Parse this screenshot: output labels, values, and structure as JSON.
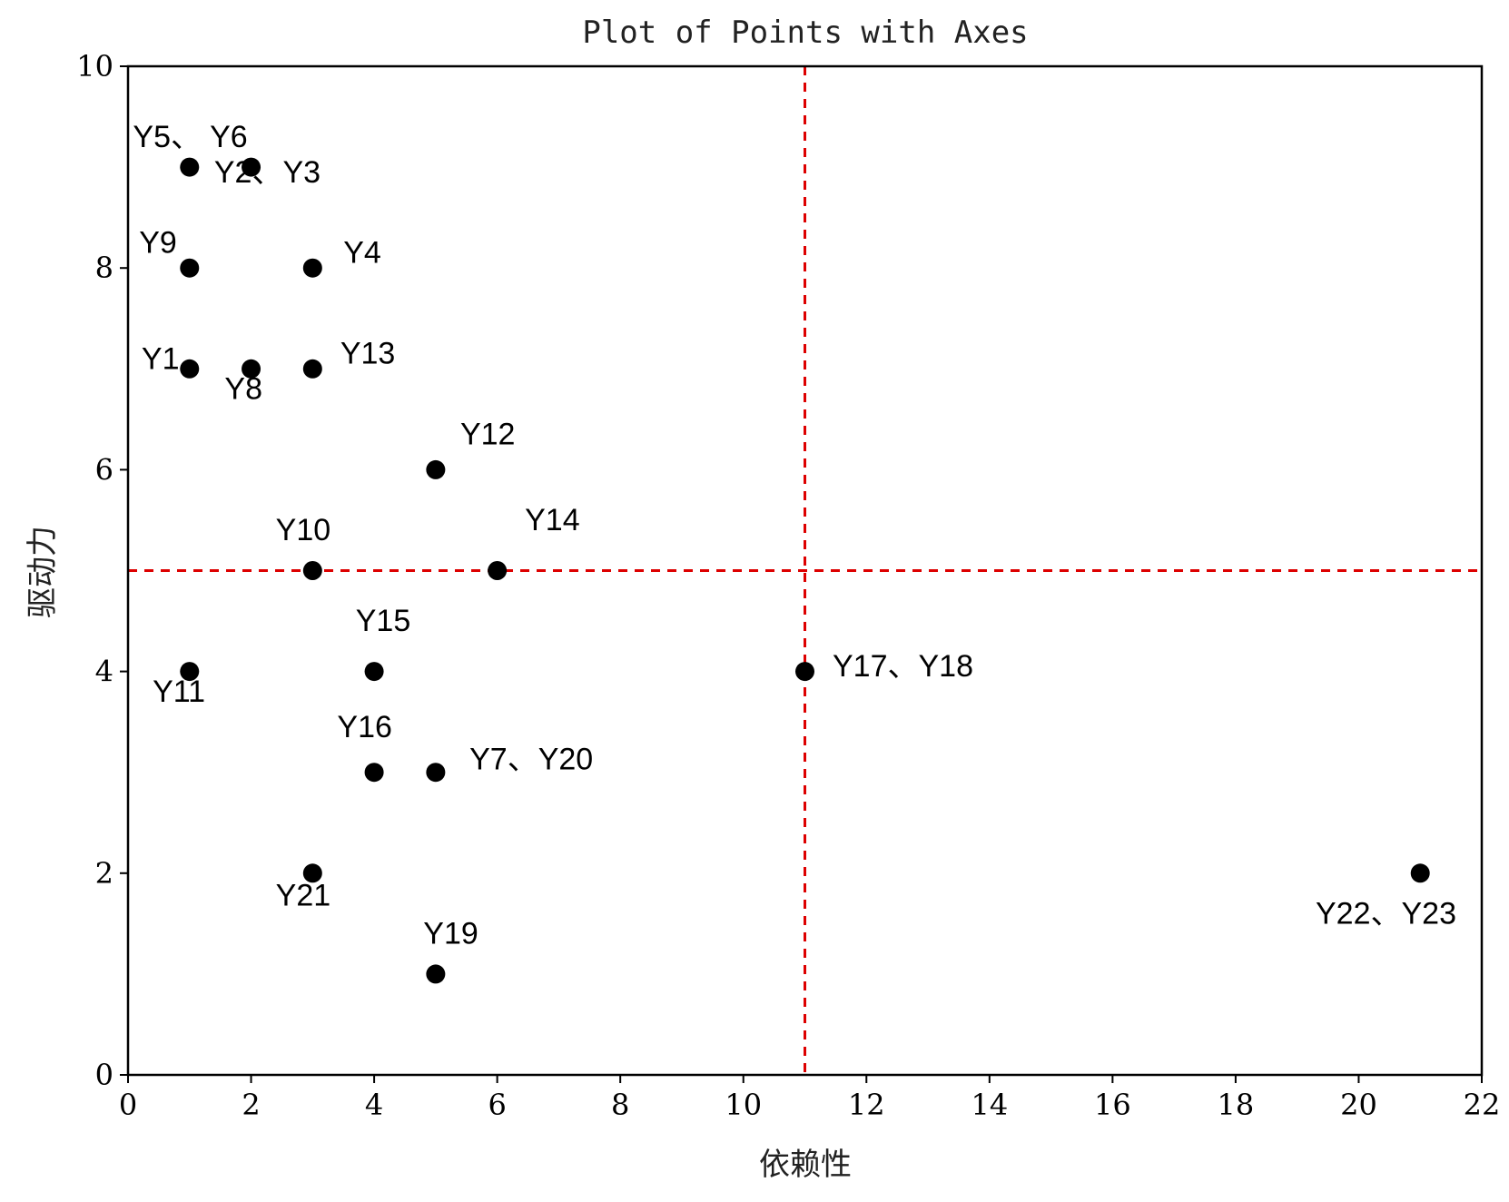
{
  "chart_data": {
    "type": "scatter",
    "title": "Plot of Points with Axes",
    "xlabel": "依赖性",
    "ylabel": "驱动力",
    "xlim": [
      0,
      22
    ],
    "ylim": [
      0,
      10
    ],
    "xticks": [
      0,
      2,
      4,
      6,
      8,
      10,
      12,
      14,
      16,
      18,
      20,
      22
    ],
    "yticks": [
      0,
      2,
      4,
      6,
      8,
      10
    ],
    "grid": false,
    "reference_lines": {
      "vertical_x": 11,
      "horizontal_y": 5,
      "color": "#dd0000",
      "style": "dashed"
    },
    "marker_color": "#000000",
    "points": [
      {
        "x": 1,
        "y": 9
      },
      {
        "x": 2,
        "y": 9
      },
      {
        "x": 1,
        "y": 8
      },
      {
        "x": 3,
        "y": 8
      },
      {
        "x": 1,
        "y": 7
      },
      {
        "x": 2,
        "y": 7
      },
      {
        "x": 3,
        "y": 7
      },
      {
        "x": 5,
        "y": 6
      },
      {
        "x": 3,
        "y": 5
      },
      {
        "x": 6,
        "y": 5
      },
      {
        "x": 1,
        "y": 4
      },
      {
        "x": 4,
        "y": 4
      },
      {
        "x": 11,
        "y": 4
      },
      {
        "x": 4,
        "y": 3
      },
      {
        "x": 5,
        "y": 3
      },
      {
        "x": 3,
        "y": 2
      },
      {
        "x": 21,
        "y": 2
      },
      {
        "x": 5,
        "y": 1
      }
    ],
    "annotations": [
      {
        "text": "Y5、",
        "x": 0.08,
        "y": 9.2
      },
      {
        "text": "Y6",
        "x": 1.33,
        "y": 9.2
      },
      {
        "text": "Y2、Y3",
        "x": 1.4,
        "y": 8.85
      },
      {
        "text": "Y9",
        "x": 0.18,
        "y": 8.15
      },
      {
        "text": "Y4",
        "x": 3.5,
        "y": 8.05
      },
      {
        "text": "Y1",
        "x": 0.22,
        "y": 7.0
      },
      {
        "text": "Y13",
        "x": 3.45,
        "y": 7.05
      },
      {
        "text": "Y8",
        "x": 1.57,
        "y": 6.7
      },
      {
        "text": "Y12",
        "x": 5.4,
        "y": 6.25
      },
      {
        "text": "Y14",
        "x": 6.45,
        "y": 5.4
      },
      {
        "text": "Y10",
        "x": 2.4,
        "y": 5.3
      },
      {
        "text": "Y15",
        "x": 3.7,
        "y": 4.4
      },
      {
        "text": "Y11",
        "x": 0.4,
        "y": 3.7
      },
      {
        "text": "Y17、Y18",
        "x": 11.45,
        "y": 3.95
      },
      {
        "text": "Y16",
        "x": 3.4,
        "y": 3.35
      },
      {
        "text": "Y7、Y20",
        "x": 5.55,
        "y": 3.03
      },
      {
        "text": "Y21",
        "x": 2.4,
        "y": 1.68
      },
      {
        "text": "Y22、Y23",
        "x": 19.3,
        "y": 1.5
      },
      {
        "text": "Y19",
        "x": 4.8,
        "y": 1.3
      }
    ]
  }
}
